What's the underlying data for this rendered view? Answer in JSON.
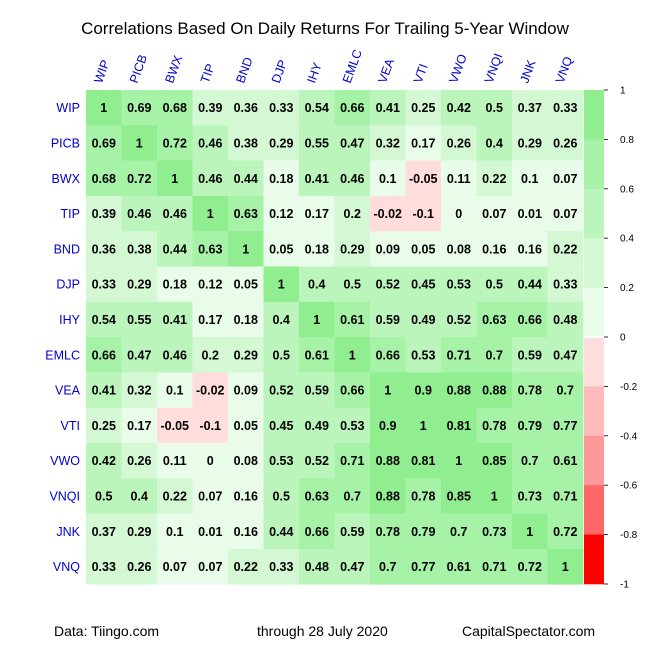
{
  "chart_data": {
    "type": "heatmap",
    "title": "Correlations Based On Daily Returns For Trailing 5-Year Window",
    "labels": [
      "WIP",
      "PICB",
      "BWX",
      "TIP",
      "BND",
      "DJP",
      "IHY",
      "EMLC",
      "VEA",
      "VTI",
      "VWO",
      "VNQI",
      "JNK",
      "VNQ"
    ],
    "values": [
      [
        1,
        0.69,
        0.68,
        0.39,
        0.36,
        0.33,
        0.54,
        0.66,
        0.41,
        0.25,
        0.42,
        0.5,
        0.37,
        0.33
      ],
      [
        0.69,
        1,
        0.72,
        0.46,
        0.38,
        0.29,
        0.55,
        0.47,
        0.32,
        0.17,
        0.26,
        0.4,
        0.29,
        0.26
      ],
      [
        0.68,
        0.72,
        1,
        0.46,
        0.44,
        0.18,
        0.41,
        0.46,
        0.1,
        -0.05,
        0.11,
        0.22,
        0.1,
        0.07
      ],
      [
        0.39,
        0.46,
        0.46,
        1,
        0.63,
        0.12,
        0.17,
        0.2,
        -0.02,
        -0.1,
        0,
        0.07,
        0.01,
        0.07
      ],
      [
        0.36,
        0.38,
        0.44,
        0.63,
        1,
        0.05,
        0.18,
        0.29,
        0.09,
        0.05,
        0.08,
        0.16,
        0.16,
        0.22
      ],
      [
        0.33,
        0.29,
        0.18,
        0.12,
        0.05,
        1,
        0.4,
        0.5,
        0.52,
        0.45,
        0.53,
        0.5,
        0.44,
        0.33
      ],
      [
        0.54,
        0.55,
        0.41,
        0.17,
        0.18,
        0.4,
        1,
        0.61,
        0.59,
        0.49,
        0.52,
        0.63,
        0.66,
        0.48
      ],
      [
        0.66,
        0.47,
        0.46,
        0.2,
        0.29,
        0.5,
        0.61,
        1,
        0.66,
        0.53,
        0.71,
        0.7,
        0.59,
        0.47
      ],
      [
        0.41,
        0.32,
        0.1,
        -0.02,
        0.09,
        0.52,
        0.59,
        0.66,
        1,
        0.9,
        0.88,
        0.88,
        0.78,
        0.7
      ],
      [
        0.25,
        0.17,
        -0.05,
        -0.1,
        0.05,
        0.45,
        0.49,
        0.53,
        0.9,
        1,
        0.81,
        0.78,
        0.79,
        0.77
      ],
      [
        0.42,
        0.26,
        0.11,
        0,
        0.08,
        0.53,
        0.52,
        0.71,
        0.88,
        0.81,
        1,
        0.85,
        0.7,
        0.61
      ],
      [
        0.5,
        0.4,
        0.22,
        0.07,
        0.16,
        0.5,
        0.63,
        0.7,
        0.88,
        0.78,
        0.85,
        1,
        0.73,
        0.71
      ],
      [
        0.37,
        0.29,
        0.1,
        0.01,
        0.16,
        0.44,
        0.66,
        0.59,
        0.78,
        0.79,
        0.7,
        0.73,
        1,
        0.72
      ],
      [
        0.33,
        0.26,
        0.07,
        0.07,
        0.22,
        0.33,
        0.48,
        0.47,
        0.7,
        0.77,
        0.61,
        0.71,
        0.72,
        1
      ]
    ],
    "color_scale": {
      "range": [
        -1,
        1
      ],
      "ticks": [
        "1",
        "0.8",
        "0.6",
        "0.4",
        "0.2",
        "0",
        "-0.2",
        "-0.4",
        "-0.6",
        "-0.8",
        "-1"
      ],
      "bands": [
        {
          "from": 0.8,
          "to": 1.0,
          "color": "#90ee90"
        },
        {
          "from": 0.6,
          "to": 0.8,
          "color": "#a6f2a6"
        },
        {
          "from": 0.4,
          "to": 0.6,
          "color": "#bcf5bc"
        },
        {
          "from": 0.2,
          "to": 0.4,
          "color": "#d3f8d3"
        },
        {
          "from": 0.0,
          "to": 0.2,
          "color": "#e9fbe9"
        },
        {
          "from": -0.2,
          "to": 0.0,
          "color": "#ffdddd"
        },
        {
          "from": -0.4,
          "to": -0.2,
          "color": "#ffbbbb"
        },
        {
          "from": -0.6,
          "to": -0.4,
          "color": "#ff9999"
        },
        {
          "from": -0.8,
          "to": -0.6,
          "color": "#ff6666"
        },
        {
          "from": -1.0,
          "to": -0.8,
          "color": "#ff3333"
        }
      ],
      "legend_top_color": "#90ee90",
      "legend_bottom_color": "#ff0000",
      "legend_zero_color": "#ffffff"
    },
    "label_color": "#0000cc",
    "legend_placement": "right"
  },
  "footer": {
    "source": "Data: Tiingo.com",
    "date": "through 28 July 2020",
    "site": "CapitalSpectator.com"
  }
}
